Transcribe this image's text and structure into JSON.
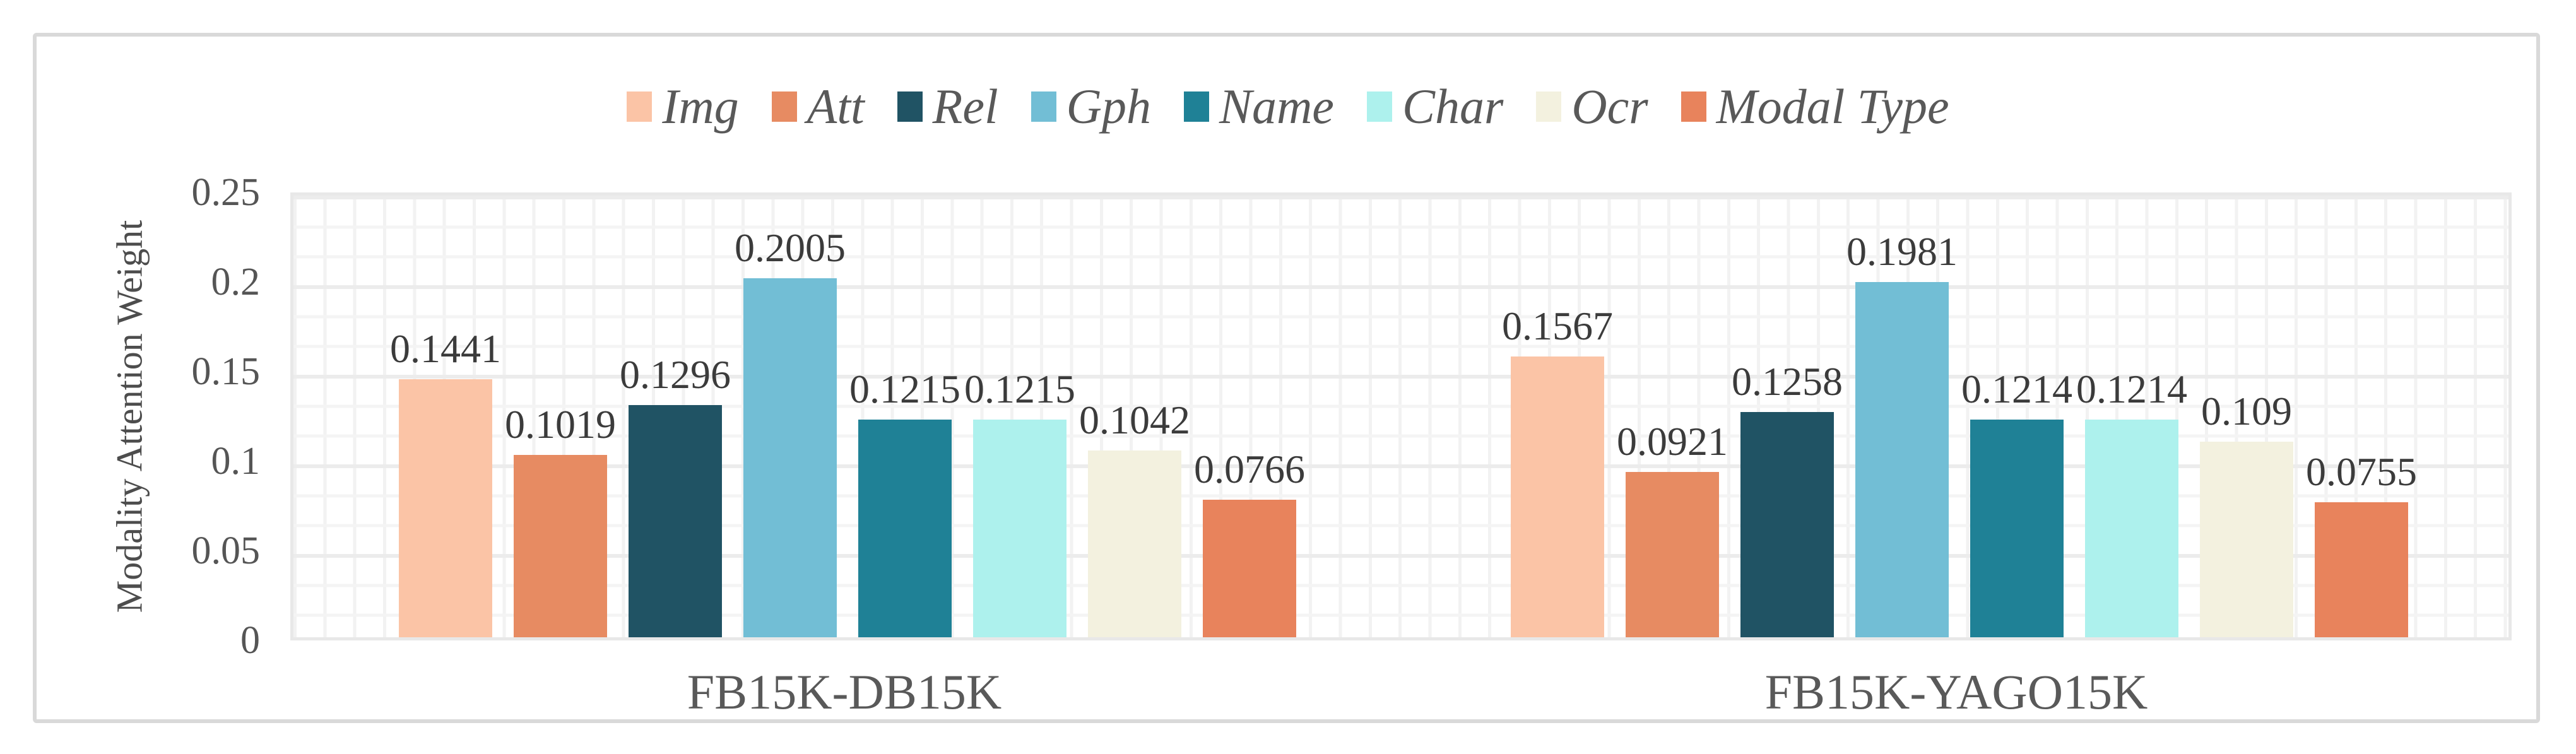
{
  "y_axis": {
    "title": "Modality Attention Weight",
    "ticks": [
      "0.25",
      "0.2",
      "0.15",
      "0.1",
      "0.05",
      "0"
    ],
    "max": 0.25,
    "min": 0
  },
  "chart_data": {
    "type": "bar",
    "title": "",
    "xlabel": "",
    "ylabel": "Modality Attention Weight",
    "ylim": [
      0,
      0.25
    ],
    "grid": true,
    "legend_position": "top",
    "categories": [
      "FB15K-DB15K",
      "FB15K-YAGO15K"
    ],
    "series": [
      {
        "name": "Img",
        "color": "#FBC4A6",
        "values": [
          0.1441,
          0.1567
        ]
      },
      {
        "name": "Att",
        "color": "#E78B62",
        "values": [
          0.1019,
          0.0921
        ]
      },
      {
        "name": "Rel",
        "color": "#205364",
        "values": [
          0.1296,
          0.1258
        ]
      },
      {
        "name": "Gph",
        "color": "#72BED5",
        "values": [
          0.2005,
          0.1981
        ]
      },
      {
        "name": "Name",
        "color": "#1F8196",
        "values": [
          0.1215,
          0.1214
        ]
      },
      {
        "name": "Char",
        "color": "#ADF1ED",
        "values": [
          0.1215,
          0.1214
        ]
      },
      {
        "name": "Ocr",
        "color": "#F3F1DF",
        "values": [
          0.1042,
          0.109
        ]
      },
      {
        "name": "Modal Type",
        "color": "#E8835C",
        "values": [
          0.0766,
          0.0755
        ]
      }
    ],
    "value_labels": [
      [
        "0.1441",
        "0.1019",
        "0.1296",
        "0.2005",
        "0.1215",
        "0.1215",
        "0.1042",
        "0.0766"
      ],
      [
        "0.1567",
        "0.0921",
        "0.1258",
        "0.1981",
        "0.1214",
        "0.1214",
        "0.109",
        "0.0755"
      ]
    ]
  }
}
